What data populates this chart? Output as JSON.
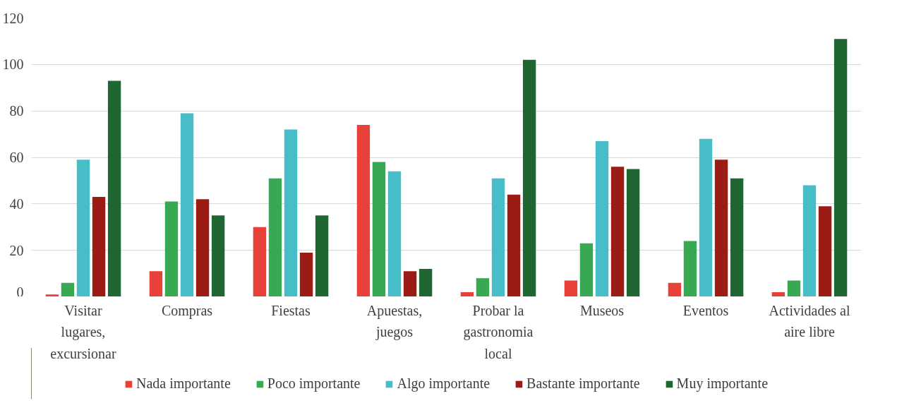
{
  "chart_data": {
    "type": "bar",
    "categories": [
      "Visitar lugares, excursionar",
      "Compras",
      "Fiestas",
      "Apuestas, juegos",
      "Probar la gastronomia local",
      "Museos",
      "Eventos",
      "Actividades al aire libre"
    ],
    "series": [
      {
        "name": "Nada importante",
        "color": "#e8413a",
        "values": [
          1,
          11,
          30,
          74,
          2,
          7,
          6,
          2
        ]
      },
      {
        "name": "Poco importante",
        "color": "#38a853",
        "values": [
          6,
          41,
          51,
          58,
          8,
          23,
          24,
          7
        ]
      },
      {
        "name": "Algo importante",
        "color": "#47bdc7",
        "values": [
          59,
          79,
          72,
          54,
          51,
          67,
          68,
          48
        ]
      },
      {
        "name": "Bastante importante",
        "color": "#9b1c15",
        "values": [
          43,
          42,
          19,
          11,
          44,
          56,
          59,
          39
        ]
      },
      {
        "name": "Muy importante",
        "color": "#1f6633",
        "values": [
          93,
          35,
          35,
          12,
          102,
          55,
          51,
          111
        ]
      }
    ],
    "ylim": [
      0,
      120
    ],
    "yticks": [
      0,
      20,
      40,
      60,
      80,
      100,
      120
    ],
    "grid": "y",
    "legend": "bottom"
  }
}
